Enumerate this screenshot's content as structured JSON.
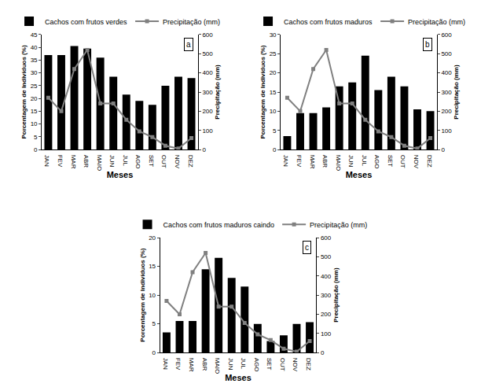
{
  "chart_data": [
    {
      "type": "bar",
      "annotations": [
        "a"
      ],
      "categories": [
        "JAN",
        "FEV",
        "MAR",
        "ABR",
        "MAIO",
        "JUN",
        "JUL",
        "AGO",
        "SET",
        "OUT",
        "NOV",
        "DEZ"
      ],
      "series": [
        {
          "name": "Cachos com frutos verdes",
          "type": "bar",
          "color": "#000000",
          "values": [
            37,
            37,
            40.5,
            39.5,
            36,
            28.5,
            21.5,
            19,
            17.5,
            25,
            28.5,
            28
          ]
        },
        {
          "name": "Precipitação (mm)",
          "type": "line",
          "axis": "y2",
          "color": "#808080",
          "marker": "square",
          "values": [
            270,
            200,
            420,
            520,
            240,
            240,
            155,
            95,
            65,
            20,
            5,
            60
          ]
        }
      ],
      "x_label": "Meses",
      "y_label": "Porcentagem de Indivíduos (%)",
      "y2_label": "Precipitação (mm)",
      "ylim": [
        0,
        45
      ],
      "yticks": [
        0,
        5,
        10,
        15,
        20,
        25,
        30,
        35,
        40,
        45
      ],
      "y2lim": [
        0,
        600
      ],
      "y2ticks": [
        0,
        100,
        200,
        300,
        400,
        500,
        600
      ],
      "legend": "top",
      "grid": false
    },
    {
      "type": "bar",
      "annotations": [
        "b"
      ],
      "categories": [
        "JAN",
        "FEV",
        "MAR",
        "ABR",
        "MAIO",
        "JUN",
        "JUL",
        "AGO",
        "SET",
        "OUT",
        "NOV",
        "DEZ"
      ],
      "series": [
        {
          "name": "Cachos com frutos maduros",
          "type": "bar",
          "color": "#000000",
          "values": [
            3.5,
            9.5,
            9.5,
            11,
            16.5,
            17.5,
            24.5,
            15.5,
            19,
            16.5,
            10.5,
            10
          ]
        },
        {
          "name": "Precipitação (mm)",
          "type": "line",
          "axis": "y2",
          "color": "#808080",
          "marker": "square",
          "values": [
            270,
            200,
            420,
            520,
            240,
            240,
            155,
            95,
            65,
            20,
            5,
            60
          ]
        }
      ],
      "x_label": "Meses",
      "y_label": "Porcentagem de Indivíduos (%)",
      "y2_label": "Precipitação (mm)",
      "ylim": [
        0,
        30
      ],
      "yticks": [
        0,
        5,
        10,
        15,
        20,
        25,
        30
      ],
      "y2lim": [
        0,
        600
      ],
      "y2ticks": [
        0,
        100,
        200,
        300,
        400,
        500,
        600
      ],
      "legend": "top",
      "grid": false
    },
    {
      "type": "bar",
      "annotations": [
        "c"
      ],
      "categories": [
        "JAN",
        "FEV",
        "MAR",
        "ABR",
        "MAIO",
        "JUN",
        "JUL",
        "AGO",
        "SET",
        "OUT",
        "NOV",
        "DEZ"
      ],
      "series": [
        {
          "name": "Cachos com frutos maduros caindo",
          "type": "bar",
          "color": "#000000",
          "values": [
            3.5,
            5.5,
            5.5,
            14.5,
            16.5,
            13,
            11.5,
            5,
            2,
            3,
            5,
            5.3
          ]
        },
        {
          "name": "Precipitação (mm)",
          "type": "line",
          "axis": "y2",
          "color": "#808080",
          "marker": "square",
          "values": [
            270,
            200,
            420,
            520,
            240,
            240,
            155,
            95,
            65,
            20,
            5,
            60
          ]
        }
      ],
      "x_label": "Meses",
      "y_label": "Porcentagem de Indivíduos (%)",
      "y2_label": "Precipitação (mm)",
      "ylim": [
        0,
        20
      ],
      "yticks": [
        0,
        5,
        10,
        15,
        20
      ],
      "y2lim": [
        0,
        600
      ],
      "y2ticks": [
        0,
        100,
        200,
        300,
        400,
        500,
        600
      ],
      "legend": "top",
      "grid": false
    }
  ]
}
